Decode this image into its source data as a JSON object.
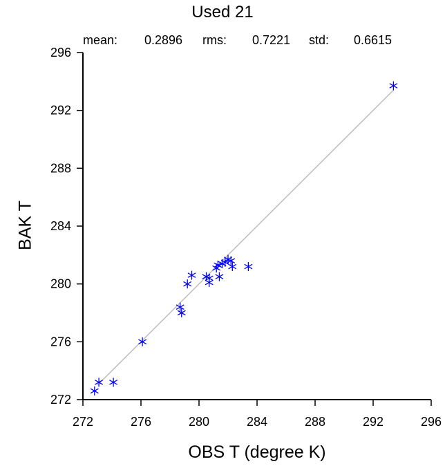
{
  "chart_data": {
    "type": "scatter",
    "title": "Used  21",
    "stats": {
      "mean_label": "mean:",
      "mean_value": "0.2896",
      "rms_label": "rms:",
      "rms_value": "0.7221",
      "std_label": "std:",
      "std_value": "0.6615"
    },
    "xlabel": "OBS T  (degree K)",
    "ylabel": "BAK T",
    "xlim": [
      272,
      296
    ],
    "ylim": [
      272,
      296
    ],
    "xticks": [
      "272",
      "276",
      "280",
      "284",
      "288",
      "292",
      "296"
    ],
    "yticks": [
      "272",
      "276",
      "280",
      "284",
      "288",
      "292",
      "296"
    ],
    "reference_line": {
      "x": [
        273.0,
        293.4
      ],
      "y": [
        273.0,
        293.4
      ],
      "color": "#bdbdbd"
    },
    "marker": "asterisk",
    "marker_color": "#0000ff",
    "points": [
      {
        "x": 272.8,
        "y": 272.6
      },
      {
        "x": 273.1,
        "y": 273.2
      },
      {
        "x": 274.1,
        "y": 273.2
      },
      {
        "x": 276.1,
        "y": 276.0
      },
      {
        "x": 278.7,
        "y": 278.4
      },
      {
        "x": 278.8,
        "y": 278.0
      },
      {
        "x": 279.2,
        "y": 280.0
      },
      {
        "x": 279.5,
        "y": 280.6
      },
      {
        "x": 280.5,
        "y": 280.5
      },
      {
        "x": 280.7,
        "y": 280.4
      },
      {
        "x": 280.7,
        "y": 280.1
      },
      {
        "x": 281.2,
        "y": 281.1
      },
      {
        "x": 281.3,
        "y": 281.3
      },
      {
        "x": 281.4,
        "y": 280.5
      },
      {
        "x": 281.6,
        "y": 281.4
      },
      {
        "x": 281.8,
        "y": 281.5
      },
      {
        "x": 282.0,
        "y": 281.7
      },
      {
        "x": 282.2,
        "y": 281.6
      },
      {
        "x": 282.3,
        "y": 281.2
      },
      {
        "x": 283.4,
        "y": 281.2
      },
      {
        "x": 293.4,
        "y": 293.7
      }
    ]
  }
}
